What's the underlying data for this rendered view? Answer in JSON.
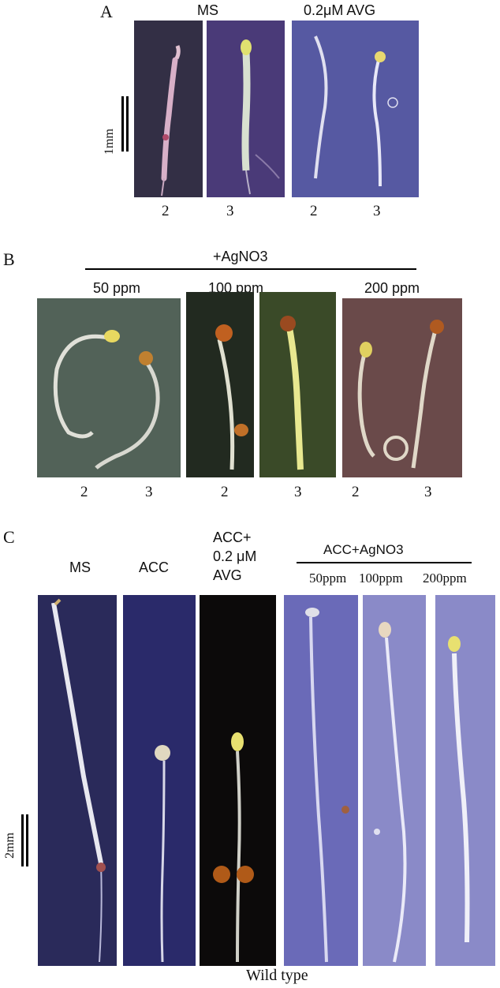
{
  "panel_a": {
    "letter": "A",
    "header_ms": "MS",
    "header_avg": "0.2μM AVG",
    "scale_label": "1mm",
    "stage_labels": [
      "2",
      "3",
      "2",
      "3"
    ]
  },
  "panel_b": {
    "letter": "B",
    "header": "+AgNO3",
    "conc_labels": [
      "50 ppm",
      "100 ppm",
      "200 ppm"
    ],
    "stage_labels": [
      "2",
      "3",
      "2",
      "3",
      "2",
      "3"
    ]
  },
  "panel_c": {
    "letter": "C",
    "header_ms": "MS",
    "header_acc": "ACC",
    "header_acc_avg": [
      "ACC+",
      "0.2 μM",
      "AVG"
    ],
    "header_agno3": "ACC+AgNO3",
    "conc_labels": [
      "50ppm",
      "100ppm",
      "200ppm"
    ],
    "scale_label": "2mm",
    "footer": "Wild type"
  },
  "colors": {
    "dark_purple_bg": "#2c2845",
    "purple_bg": "#4a3a78",
    "blue_bg": "#4a4f9a",
    "green_gray_bg": "#4a5a50",
    "dark_green_bg": "#222a20",
    "olive_bg": "#3a4a28",
    "mauve_bg": "#6a4a4a",
    "deep_blue_bg": "#2a2a6a",
    "black_bg": "#0c0a0a",
    "lilac_bg": "#7a7ac0"
  }
}
